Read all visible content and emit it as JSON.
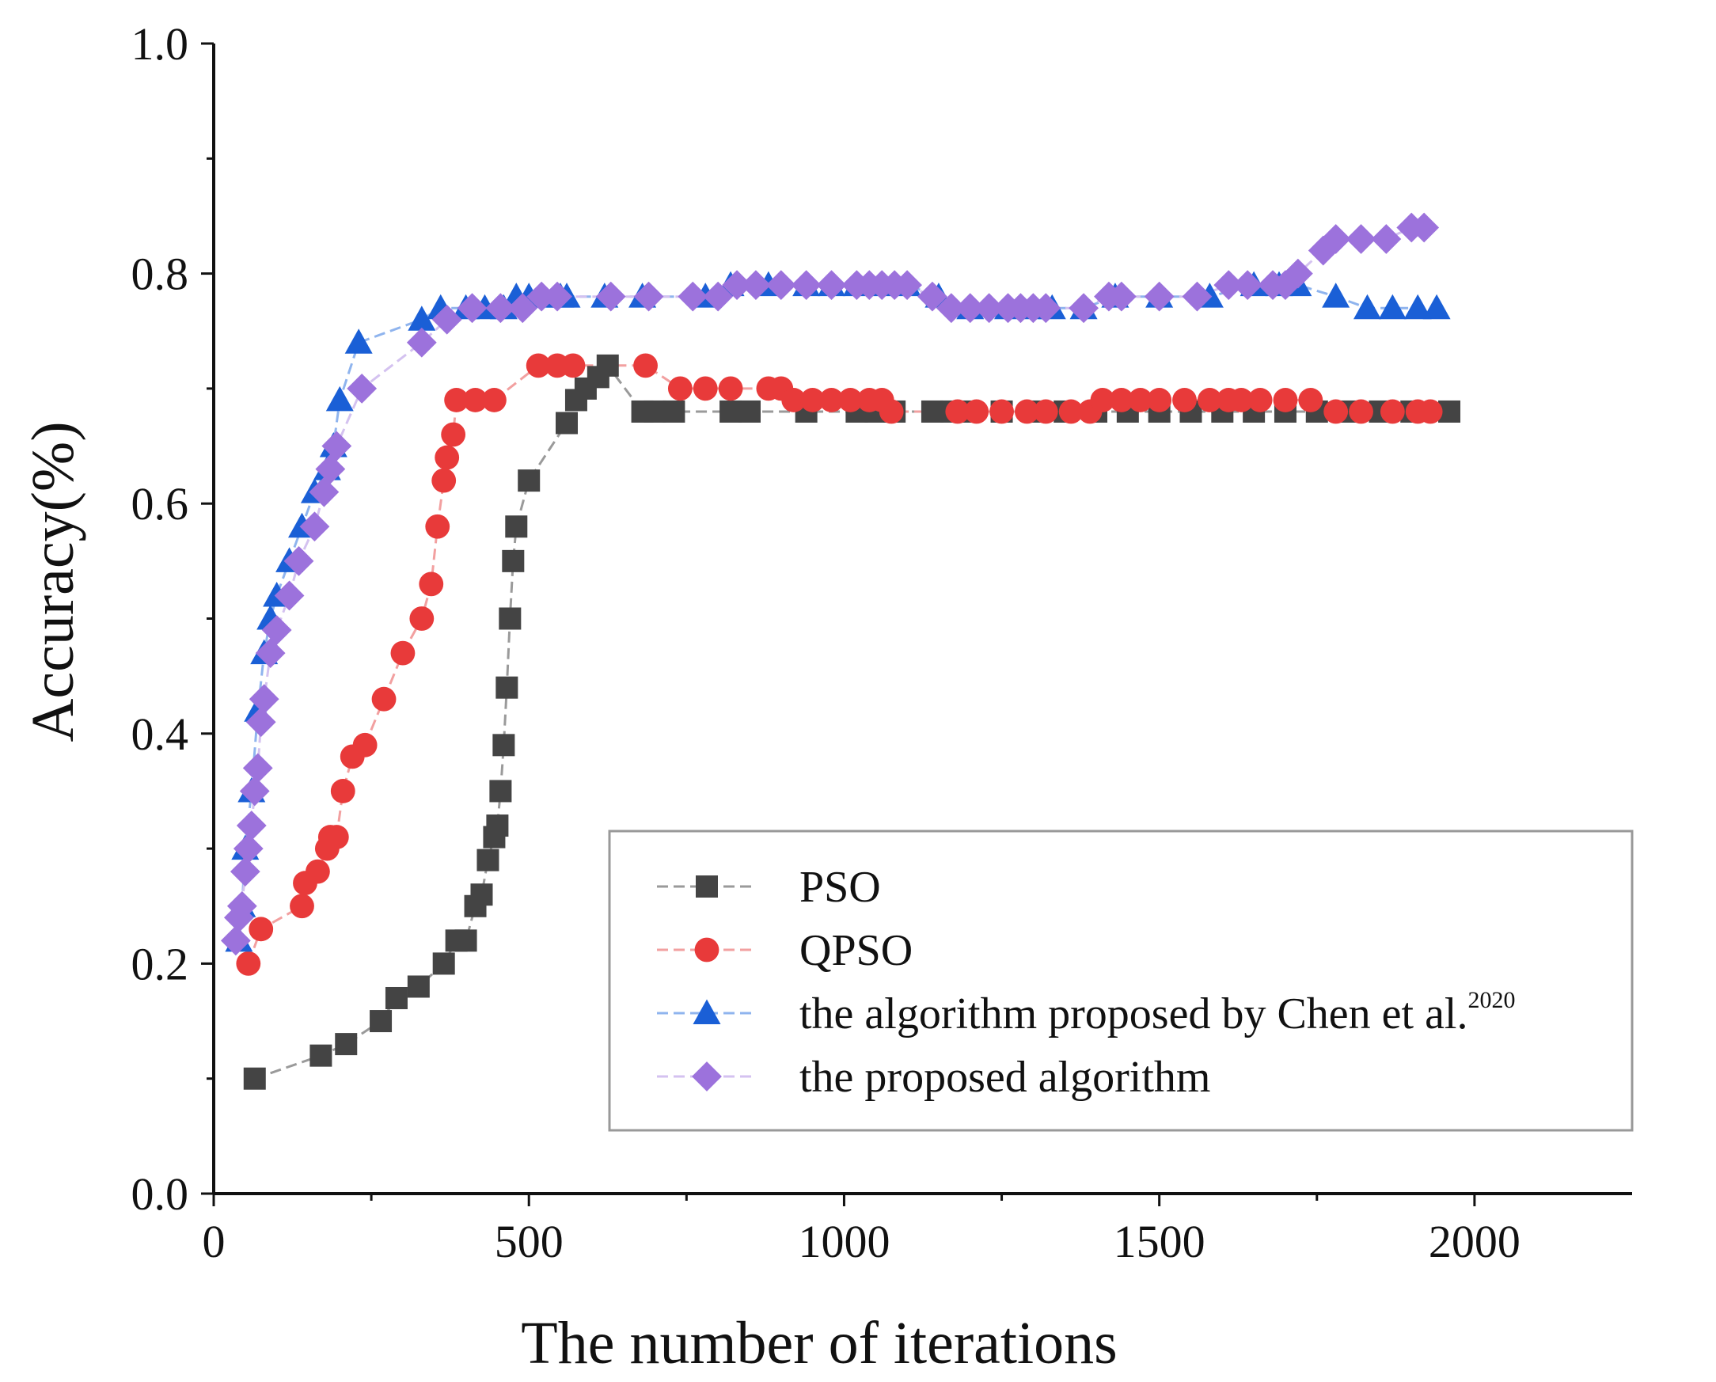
{
  "chart_data": {
    "type": "line",
    "xlabel": "The number of iterations",
    "ylabel": "Accuracy(%)",
    "xlim": [
      0,
      2250
    ],
    "ylim": [
      0,
      1.0
    ],
    "xticks": [
      "0",
      "500",
      "1000",
      "1500",
      "2000"
    ],
    "yticks": [
      "0.0",
      "0.2",
      "0.4",
      "0.6",
      "0.8",
      "1.0"
    ],
    "legend_position": "lower-right",
    "series": [
      {
        "name": "PSO",
        "color": "#444444",
        "line_color": "#9a9a9a",
        "marker": "square",
        "x": [
          65,
          170,
          210,
          265,
          290,
          325,
          365,
          385,
          400,
          415,
          425,
          435,
          445,
          450,
          455,
          460,
          465,
          470,
          475,
          480,
          500,
          560,
          575,
          590,
          610,
          625,
          680,
          700,
          730,
          820,
          850,
          940,
          1020,
          1050,
          1080,
          1140,
          1170,
          1200,
          1250,
          1300,
          1350,
          1400,
          1450,
          1500,
          1550,
          1600,
          1650,
          1700,
          1750,
          1800,
          1850,
          1900,
          1960
        ],
        "y": [
          0.1,
          0.12,
          0.13,
          0.15,
          0.17,
          0.18,
          0.2,
          0.22,
          0.22,
          0.25,
          0.26,
          0.29,
          0.31,
          0.32,
          0.35,
          0.39,
          0.44,
          0.5,
          0.55,
          0.58,
          0.62,
          0.67,
          0.69,
          0.7,
          0.71,
          0.72,
          0.68,
          0.68,
          0.68,
          0.68,
          0.68,
          0.68,
          0.68,
          0.68,
          0.68,
          0.68,
          0.68,
          0.68,
          0.68,
          0.68,
          0.68,
          0.68,
          0.68,
          0.68,
          0.68,
          0.68,
          0.68,
          0.68,
          0.68,
          0.68,
          0.68,
          0.68,
          0.68
        ]
      },
      {
        "name": "QPSO",
        "color": "#e83a3a",
        "line_color": "#f2a0a0",
        "marker": "circle",
        "x": [
          55,
          75,
          140,
          145,
          165,
          180,
          185,
          195,
          205,
          220,
          240,
          270,
          300,
          330,
          345,
          355,
          365,
          370,
          380,
          385,
          415,
          445,
          515,
          545,
          570,
          685,
          740,
          780,
          820,
          880,
          900,
          920,
          950,
          980,
          1010,
          1040,
          1060,
          1075,
          1180,
          1210,
          1250,
          1290,
          1320,
          1360,
          1390,
          1410,
          1440,
          1470,
          1500,
          1540,
          1580,
          1610,
          1630,
          1660,
          1700,
          1740,
          1780,
          1820,
          1870,
          1910,
          1930
        ],
        "y": [
          0.2,
          0.23,
          0.25,
          0.27,
          0.28,
          0.3,
          0.31,
          0.31,
          0.35,
          0.38,
          0.39,
          0.43,
          0.47,
          0.5,
          0.53,
          0.58,
          0.62,
          0.64,
          0.66,
          0.69,
          0.69,
          0.69,
          0.72,
          0.72,
          0.72,
          0.72,
          0.7,
          0.7,
          0.7,
          0.7,
          0.7,
          0.69,
          0.69,
          0.69,
          0.69,
          0.69,
          0.69,
          0.68,
          0.68,
          0.68,
          0.68,
          0.68,
          0.68,
          0.68,
          0.68,
          0.69,
          0.69,
          0.69,
          0.69,
          0.69,
          0.69,
          0.69,
          0.69,
          0.69,
          0.69,
          0.69,
          0.68,
          0.68,
          0.68,
          0.68,
          0.68
        ]
      },
      {
        "name": "the algorithm proposed by Chen et al.",
        "name_superscript": "2020",
        "color": "#1a5fd6",
        "line_color": "#8fb4ee",
        "marker": "triangle",
        "x": [
          40,
          45,
          50,
          60,
          70,
          80,
          90,
          100,
          120,
          140,
          160,
          180,
          190,
          200,
          230,
          330,
          360,
          400,
          430,
          460,
          480,
          500,
          520,
          550,
          560,
          620,
          680,
          780,
          820,
          880,
          940,
          980,
          1020,
          1060,
          1100,
          1150,
          1200,
          1260,
          1300,
          1330,
          1380,
          1430,
          1500,
          1580,
          1650,
          1690,
          1720,
          1780,
          1830,
          1870,
          1910,
          1940
        ],
        "y": [
          0.22,
          0.25,
          0.3,
          0.35,
          0.42,
          0.47,
          0.5,
          0.52,
          0.55,
          0.58,
          0.61,
          0.63,
          0.65,
          0.69,
          0.74,
          0.76,
          0.77,
          0.77,
          0.77,
          0.77,
          0.78,
          0.78,
          0.78,
          0.78,
          0.78,
          0.78,
          0.78,
          0.78,
          0.79,
          0.79,
          0.79,
          0.79,
          0.79,
          0.79,
          0.79,
          0.78,
          0.77,
          0.77,
          0.77,
          0.77,
          0.77,
          0.78,
          0.78,
          0.78,
          0.79,
          0.79,
          0.79,
          0.78,
          0.77,
          0.77,
          0.77,
          0.77
        ]
      },
      {
        "name": "the proposed algorithm",
        "color": "#9c72dc",
        "line_color": "#d4c2f0",
        "marker": "diamond",
        "x": [
          35,
          40,
          45,
          50,
          55,
          60,
          65,
          70,
          75,
          80,
          90,
          100,
          120,
          135,
          160,
          175,
          185,
          195,
          235,
          330,
          370,
          410,
          455,
          490,
          520,
          545,
          630,
          690,
          760,
          800,
          830,
          860,
          900,
          940,
          980,
          1020,
          1040,
          1060,
          1080,
          1100,
          1140,
          1170,
          1200,
          1230,
          1260,
          1280,
          1300,
          1320,
          1380,
          1420,
          1440,
          1500,
          1560,
          1610,
          1640,
          1680,
          1700,
          1720,
          1760,
          1780,
          1820,
          1860,
          1900,
          1920
        ],
        "y": [
          0.22,
          0.24,
          0.25,
          0.28,
          0.3,
          0.32,
          0.35,
          0.37,
          0.41,
          0.43,
          0.47,
          0.49,
          0.52,
          0.55,
          0.58,
          0.61,
          0.63,
          0.65,
          0.7,
          0.74,
          0.76,
          0.77,
          0.77,
          0.77,
          0.78,
          0.78,
          0.78,
          0.78,
          0.78,
          0.78,
          0.79,
          0.79,
          0.79,
          0.79,
          0.79,
          0.79,
          0.79,
          0.79,
          0.79,
          0.79,
          0.78,
          0.77,
          0.77,
          0.77,
          0.77,
          0.77,
          0.77,
          0.77,
          0.77,
          0.78,
          0.78,
          0.78,
          0.78,
          0.79,
          0.79,
          0.79,
          0.79,
          0.8,
          0.82,
          0.83,
          0.83,
          0.83,
          0.84,
          0.84
        ]
      }
    ]
  }
}
